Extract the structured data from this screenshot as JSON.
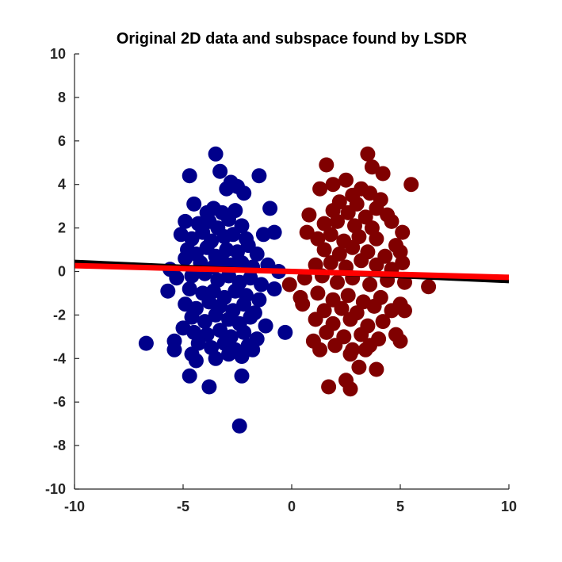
{
  "chart_data": {
    "type": "scatter",
    "title": "Original 2D data and subspace found by LSDR",
    "xlabel": "",
    "ylabel": "",
    "xlim": [
      -10,
      10
    ],
    "ylim": [
      -10,
      10
    ],
    "xticks": [
      -10,
      -5,
      0,
      5,
      10
    ],
    "yticks": [
      -10,
      -8,
      -6,
      -4,
      -2,
      0,
      2,
      4,
      6,
      8,
      10
    ],
    "grid": false,
    "legend": "none",
    "series": [
      {
        "color": "#00008b",
        "points": [
          [
            -3.5,
            5.4
          ],
          [
            -3.3,
            4.6
          ],
          [
            -4.7,
            4.4
          ],
          [
            -2.8,
            4.1
          ],
          [
            -1.5,
            4.4
          ],
          [
            -2.5,
            3.9
          ],
          [
            -3.0,
            3.8
          ],
          [
            -2.2,
            3.6
          ],
          [
            -4.5,
            3.1
          ],
          [
            -3.9,
            2.7
          ],
          [
            -3.6,
            2.9
          ],
          [
            -3.2,
            2.7
          ],
          [
            -2.6,
            2.8
          ],
          [
            -1.0,
            2.9
          ],
          [
            -4.9,
            2.3
          ],
          [
            -4.3,
            2.2
          ],
          [
            -3.8,
            2.3
          ],
          [
            -3.4,
            2.0
          ],
          [
            -2.9,
            2.4
          ],
          [
            -2.3,
            2.1
          ],
          [
            -5.1,
            1.7
          ],
          [
            -4.6,
            1.5
          ],
          [
            -4.1,
            1.8
          ],
          [
            -3.7,
            1.4
          ],
          [
            -3.1,
            1.6
          ],
          [
            -2.7,
            1.7
          ],
          [
            -2.1,
            1.5
          ],
          [
            -1.3,
            1.7
          ],
          [
            -0.8,
            1.8
          ],
          [
            -4.8,
            1.0
          ],
          [
            -4.4,
            0.8
          ],
          [
            -3.9,
            1.1
          ],
          [
            -3.5,
            0.7
          ],
          [
            -3.0,
            1.0
          ],
          [
            -2.5,
            0.9
          ],
          [
            -2.0,
            1.2
          ],
          [
            -1.6,
            0.8
          ],
          [
            -4.9,
            0.6
          ],
          [
            -4.2,
            0.4
          ],
          [
            -3.6,
            0.2
          ],
          [
            -3.2,
            0.5
          ],
          [
            -2.8,
            0.3
          ],
          [
            -2.3,
            0.4
          ],
          [
            -1.8,
            0.2
          ],
          [
            -1.1,
            0.3
          ],
          [
            -0.6,
            0.0
          ],
          [
            -5.6,
            0.1
          ],
          [
            -5.3,
            -0.3
          ],
          [
            -4.6,
            -0.2
          ],
          [
            -4.0,
            -0.1
          ],
          [
            -3.4,
            -0.4
          ],
          [
            -2.9,
            -0.2
          ],
          [
            -2.4,
            -0.5
          ],
          [
            -1.9,
            -0.3
          ],
          [
            -1.4,
            -0.6
          ],
          [
            -0.8,
            -0.8
          ],
          [
            -5.7,
            -0.9
          ],
          [
            -4.7,
            -0.8
          ],
          [
            -4.1,
            -1.0
          ],
          [
            -3.6,
            -0.9
          ],
          [
            -3.1,
            -1.2
          ],
          [
            -2.6,
            -0.9
          ],
          [
            -2.1,
            -1.1
          ],
          [
            -1.5,
            -1.3
          ],
          [
            -4.9,
            -1.5
          ],
          [
            -4.4,
            -1.7
          ],
          [
            -3.8,
            -1.4
          ],
          [
            -3.3,
            -1.6
          ],
          [
            -2.7,
            -1.8
          ],
          [
            -2.2,
            -1.5
          ],
          [
            -1.7,
            -1.9
          ],
          [
            -4.6,
            -2.1
          ],
          [
            -4.0,
            -2.3
          ],
          [
            -3.5,
            -2.0
          ],
          [
            -2.9,
            -2.2
          ],
          [
            -2.4,
            -2.4
          ],
          [
            -1.9,
            -2.1
          ],
          [
            -1.2,
            -2.5
          ],
          [
            -5.0,
            -2.6
          ],
          [
            -4.5,
            -2.8
          ],
          [
            -3.9,
            -2.9
          ],
          [
            -3.3,
            -2.7
          ],
          [
            -2.8,
            -3.0
          ],
          [
            -2.2,
            -2.8
          ],
          [
            -1.6,
            -3.1
          ],
          [
            -0.3,
            -2.8
          ],
          [
            -5.4,
            -3.2
          ],
          [
            -4.3,
            -3.3
          ],
          [
            -3.7,
            -3.5
          ],
          [
            -3.1,
            -3.3
          ],
          [
            -2.6,
            -3.6
          ],
          [
            -2.0,
            -3.4
          ],
          [
            -6.7,
            -3.3
          ],
          [
            -5.4,
            -3.6
          ],
          [
            -4.6,
            -3.8
          ],
          [
            -3.5,
            -4.0
          ],
          [
            -2.9,
            -3.8
          ],
          [
            -2.3,
            -3.9
          ],
          [
            -1.8,
            -3.6
          ],
          [
            -4.4,
            -4.1
          ],
          [
            -4.7,
            -4.8
          ],
          [
            -2.3,
            -4.8
          ],
          [
            -3.8,
            -5.3
          ],
          [
            -2.4,
            -7.1
          ]
        ]
      },
      {
        "color": "#800000",
        "points": [
          [
            3.5,
            5.4
          ],
          [
            1.6,
            4.9
          ],
          [
            3.7,
            4.8
          ],
          [
            4.2,
            4.5
          ],
          [
            1.9,
            4.0
          ],
          [
            2.5,
            4.2
          ],
          [
            3.2,
            3.8
          ],
          [
            5.5,
            4.0
          ],
          [
            2.8,
            3.5
          ],
          [
            3.6,
            3.6
          ],
          [
            4.1,
            3.3
          ],
          [
            1.3,
            3.8
          ],
          [
            2.2,
            3.2
          ],
          [
            3.0,
            3.1
          ],
          [
            3.9,
            2.9
          ],
          [
            1.9,
            2.8
          ],
          [
            2.6,
            2.7
          ],
          [
            3.4,
            2.5
          ],
          [
            4.4,
            2.6
          ],
          [
            0.8,
            2.6
          ],
          [
            1.5,
            2.2
          ],
          [
            2.1,
            2.3
          ],
          [
            2.9,
            2.1
          ],
          [
            3.7,
            2.0
          ],
          [
            4.6,
            2.3
          ],
          [
            5.1,
            1.8
          ],
          [
            0.7,
            1.8
          ],
          [
            1.2,
            1.5
          ],
          [
            1.8,
            1.7
          ],
          [
            2.4,
            1.4
          ],
          [
            3.1,
            1.6
          ],
          [
            3.9,
            1.5
          ],
          [
            4.8,
            1.2
          ],
          [
            1.5,
            1.0
          ],
          [
            2.2,
            0.8
          ],
          [
            2.8,
            1.1
          ],
          [
            3.5,
            0.9
          ],
          [
            4.3,
            0.7
          ],
          [
            5.0,
            0.9
          ],
          [
            1.1,
            0.3
          ],
          [
            1.8,
            0.4
          ],
          [
            2.5,
            0.2
          ],
          [
            3.2,
            0.5
          ],
          [
            3.9,
            0.3
          ],
          [
            4.6,
            0.1
          ],
          [
            5.1,
            0.4
          ],
          [
            -0.1,
            -0.6
          ],
          [
            0.6,
            -0.3
          ],
          [
            1.4,
            -0.2
          ],
          [
            2.1,
            -0.5
          ],
          [
            2.8,
            -0.3
          ],
          [
            3.6,
            -0.6
          ],
          [
            4.4,
            -0.4
          ],
          [
            5.2,
            -0.5
          ],
          [
            6.3,
            -0.7
          ],
          [
            0.4,
            -1.2
          ],
          [
            1.2,
            -1.0
          ],
          [
            1.9,
            -1.3
          ],
          [
            2.6,
            -1.1
          ],
          [
            3.3,
            -1.4
          ],
          [
            4.1,
            -1.2
          ],
          [
            5.0,
            -1.5
          ],
          [
            0.5,
            -1.5
          ],
          [
            1.5,
            -1.8
          ],
          [
            2.3,
            -1.7
          ],
          [
            3.0,
            -1.9
          ],
          [
            3.8,
            -1.6
          ],
          [
            4.6,
            -1.8
          ],
          [
            5.2,
            -1.8
          ],
          [
            1.1,
            -2.2
          ],
          [
            1.9,
            -2.4
          ],
          [
            2.7,
            -2.2
          ],
          [
            3.5,
            -2.5
          ],
          [
            4.2,
            -2.3
          ],
          [
            1.6,
            -2.8
          ],
          [
            2.4,
            -3.0
          ],
          [
            3.2,
            -2.9
          ],
          [
            4.0,
            -3.1
          ],
          [
            4.8,
            -2.9
          ],
          [
            1.0,
            -3.2
          ],
          [
            2.0,
            -3.4
          ],
          [
            2.8,
            -3.6
          ],
          [
            3.6,
            -3.4
          ],
          [
            5.0,
            -3.2
          ],
          [
            1.3,
            -3.6
          ],
          [
            2.7,
            -3.8
          ],
          [
            3.4,
            -3.6
          ],
          [
            3.1,
            -4.4
          ],
          [
            3.9,
            -4.5
          ],
          [
            1.7,
            -5.3
          ],
          [
            2.5,
            -5.0
          ],
          [
            2.7,
            -5.4
          ]
        ]
      }
    ],
    "lines": [
      {
        "color": "#000000",
        "x": [
          -10,
          10
        ],
        "y": [
          0.45,
          -0.45
        ]
      },
      {
        "color": "#ff0000",
        "x": [
          -10,
          10
        ],
        "y": [
          0.27,
          -0.27
        ]
      }
    ]
  }
}
